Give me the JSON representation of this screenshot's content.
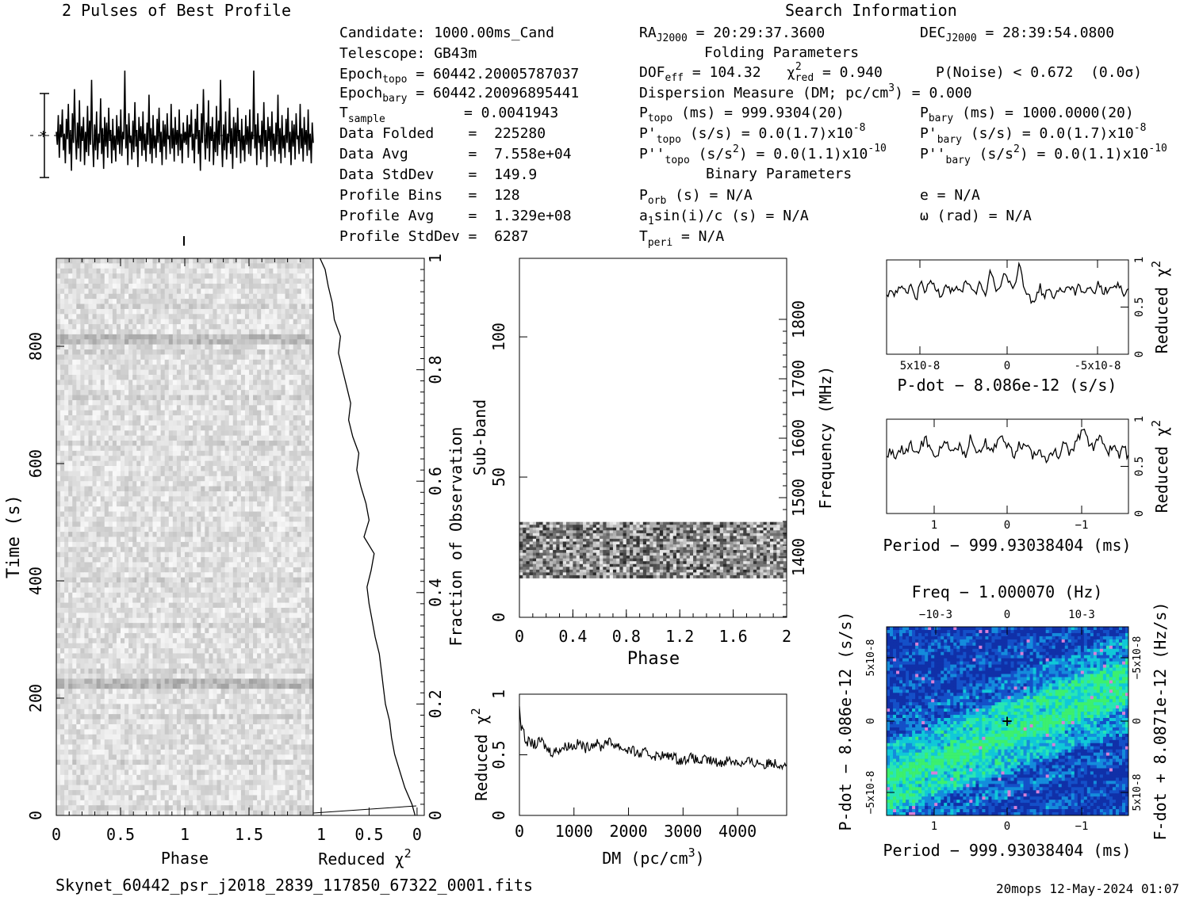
{
  "header": {
    "profile_title": "2 Pulses of Best Profile",
    "search_title": "Search Information",
    "folding_title": "Folding Parameters",
    "binary_title": "Binary Parameters",
    "footer_file": "Skynet_60442_psr_j2018_2839_117850_67322_0001.fits",
    "footer_stamp": "20mops 12-May-2024 01:07"
  },
  "info": {
    "candidate": "Candidate:  1000.00ms_Cand",
    "telescope": "Telescope:  GB43m",
    "epoch_topo_label": "Epoch",
    "epoch_topo_sub": "topo",
    "epoch_topo_val": " = 60442.20005787037",
    "epoch_bary_label": "Epoch",
    "epoch_bary_sub": "bary",
    "epoch_bary_val": " = 60442.20096895441",
    "tsample_label": "T",
    "tsample_sub": "sample",
    "tsample_val": "=  0.0041943",
    "data_folded": "Data Folded    =  225280",
    "data_avg": "Data Avg       =  7.558e+04",
    "data_stddev": "Data StdDev    =  149.9",
    "profile_bins": "Profile Bins   =  128",
    "profile_avg": "Profile Avg    =  1.329e+08",
    "profile_stddev": "Profile StdDev =  6287",
    "ra_label": "RA",
    "ra_sub": "J2000",
    "ra_val": " = 20:29:37.3600",
    "dec_label": "DEC",
    "dec_sub": "J2000",
    "dec_val": " = 28:39:54.0800",
    "dof_label": "DOF",
    "dof_sub": "eff",
    "dof_val": " = 104.32",
    "chi_label": "χ",
    "chi_sup": "2",
    "chi_sub": "red",
    "chi_val": " = 0.940",
    "pnoise": "P(Noise) < 0.672  (0.0σ)",
    "dispersion": "Dispersion Measure (DM; pc/cm",
    "dispersion_sup": "3",
    "dispersion_val": ") = 0.000",
    "ptopo_label": "P",
    "ptopo_sub": "topo",
    "ptopo_val": " (ms) =  999.9304(20)",
    "pbary_label": "P",
    "pbary_sub": "bary",
    "pbary_val": " (ms) =  1000.0000(20)",
    "pdtopo_label": "P'",
    "pdtopo_sub": "topo",
    "pdtopo_val": " (s/s) = 0.0(1.7)x10",
    "pdtopo_exp": "-8",
    "pdbary_label": "P'",
    "pdbary_sub": "bary",
    "pdbary_val": " (s/s) = 0.0(1.7)x10",
    "pdbary_exp": "-8",
    "pddtopo_label": "P''",
    "pddtopo_sub": "topo",
    "pddtopo_val": " (s/s",
    "pddtopo_sup": "2",
    "pddtopo_val2": ") = 0.0(1.1)x10",
    "pddtopo_exp": "-10",
    "pddbary_label": "P''",
    "pddbary_sub": "bary",
    "pddbary_val": " (s/s",
    "pddbary_sup": "2",
    "pddbary_val2": ") = 0.0(1.1)x10",
    "pddbary_exp": "-10",
    "porb_label": "P",
    "porb_sub": "orb",
    "porb_val": " (s) = N/A",
    "asini": "a",
    "asini_sub": "1",
    "asini_val": "sin(i)/c (s) = N/A",
    "tperi_label": "T",
    "tperi_sub": "peri",
    "tperi_val": " = N/A",
    "ecc": "e = N/A",
    "omega": "ω (rad) = N/A"
  },
  "axes": {
    "phase": "Phase",
    "time": "Time (s)",
    "redchi": "Reduced χ",
    "redchi_sup": "2",
    "fraction": "Fraction of Observation",
    "subband": "Sub-band",
    "frequency": "Frequency (MHz)",
    "dm": "DM (pc/cm",
    "dm_sup": "3",
    "dm_close": ")",
    "pdot_axis": "P-dot − 8.086e-12 (s/s)",
    "period_axis": "Period − 999.93038404 (ms)",
    "freq_axis": "Freq − 1.000070 (Hz)",
    "fdot_axis": "F-dot + 8.0871e-12 (Hz/s)"
  },
  "colors": {
    "ink": "#000000",
    "grid_dark": "#888888",
    "grid_light": "#f2f2f2",
    "map_low": "#1030a8",
    "map_mid": "#10c8d8",
    "map_high": "#30f070",
    "map_peak": "#d880d8"
  },
  "chart_data": [
    {
      "type": "line",
      "name": "pulse-profile",
      "title": "2 Pulses of Best Profile",
      "x_range": [
        0,
        2
      ],
      "bins": 128,
      "description_values": "noise-like profile, two repeated pulses",
      "values": [
        0.62,
        0.55,
        0.71,
        0.48,
        0.66,
        0.59,
        0.74,
        0.52,
        0.61,
        0.45,
        0.69,
        0.58,
        0.77,
        0.5,
        0.63,
        0.41,
        0.72,
        0.56,
        0.85,
        0.6,
        0.47,
        0.67,
        0.53,
        0.79,
        0.46,
        0.65,
        0.57,
        0.7,
        0.44,
        0.62,
        0.51,
        0.76,
        0.49,
        0.68,
        0.55,
        0.9,
        0.58,
        0.43,
        0.66,
        0.52,
        0.73,
        0.47,
        0.61,
        0.56,
        0.8,
        0.5,
        0.64,
        0.42,
        0.7,
        0.54,
        0.67,
        0.48,
        0.75,
        0.57,
        0.63,
        0.45,
        0.69,
        0.52,
        0.6,
        0.46,
        0.71,
        0.55,
        0.65,
        0.5,
        0.74,
        0.49,
        0.62,
        0.58,
        0.95,
        0.53,
        0.66,
        0.44,
        0.72,
        0.56,
        0.6,
        0.47,
        0.68,
        0.51,
        0.78,
        0.54,
        0.63,
        0.43,
        0.7,
        0.57,
        0.65,
        0.49,
        0.73,
        0.52,
        0.61,
        0.46,
        0.67,
        0.55,
        0.82,
        0.5,
        0.64,
        0.45,
        0.71,
        0.53,
        0.6,
        0.48,
        0.69,
        0.56,
        0.75,
        0.51,
        0.62,
        0.44,
        0.68,
        0.54,
        0.66,
        0.47,
        0.72,
        0.58,
        0.6,
        0.5,
        0.77,
        0.53,
        0.64,
        0.46,
        0.7,
        0.55,
        0.63,
        0.49,
        0.74,
        0.52,
        0.61,
        0.45,
        0.67,
        0.56
      ]
    },
    {
      "type": "heatmap",
      "name": "time-phase",
      "xlabel": "Phase",
      "ylabel": "Time (s)",
      "xlim": [
        0,
        2
      ],
      "ylim": [
        0,
        950
      ],
      "xticks": [
        "0",
        "0.5",
        "1",
        "1.5"
      ],
      "yticks": [
        "0",
        "200",
        "400",
        "600",
        "800"
      ]
    },
    {
      "type": "line",
      "name": "time-redchi",
      "xlabel": "Reduced χ2",
      "ylabel": "Fraction of Observation",
      "xticks": [
        "1",
        "0.5",
        "0"
      ],
      "yticks": [
        "0",
        "0.2",
        "0.4",
        "0.6",
        "0.8",
        "1"
      ],
      "x_range": [
        1,
        0
      ],
      "y": [
        0.0,
        0.02,
        0.05,
        0.08,
        0.11,
        0.14,
        0.17,
        0.2,
        0.23,
        0.26,
        0.29,
        0.32,
        0.35,
        0.38,
        0.41,
        0.44,
        0.47,
        0.5,
        0.53,
        0.56,
        0.59,
        0.62,
        0.65,
        0.68,
        0.71,
        0.74,
        0.77,
        0.8,
        0.83,
        0.86,
        0.89,
        0.92,
        0.95,
        0.98,
        1.0
      ],
      "x": [
        0.05,
        0.08,
        0.15,
        0.2,
        0.25,
        0.28,
        0.3,
        0.34,
        0.36,
        0.38,
        0.4,
        0.44,
        0.47,
        0.5,
        0.52,
        0.48,
        0.45,
        0.55,
        0.5,
        0.53,
        0.58,
        0.62,
        0.6,
        0.66,
        0.7,
        0.68,
        0.72,
        0.76,
        0.8,
        0.78,
        0.84,
        0.86,
        0.9,
        0.93,
        0.98
      ]
    },
    {
      "type": "heatmap",
      "name": "subband-phase",
      "xlabel": "Phase",
      "ylabel": "Sub-band",
      "y2label": "Frequency (MHz)",
      "xlim": [
        0,
        2
      ],
      "ylim": [
        0,
        128
      ],
      "band_range": [
        14,
        34
      ],
      "xticks": [
        "0",
        "0.4",
        "0.8",
        "1.2",
        "1.6",
        "2"
      ],
      "yticks": [
        "0",
        "50",
        "100"
      ],
      "y2ticks": [
        "1400",
        "1500",
        "1600",
        "1700",
        "1800"
      ]
    },
    {
      "type": "line",
      "name": "dm-redchi",
      "xlabel": "DM (pc/cm3)",
      "ylabel": "Reduced χ2",
      "xlim": [
        0,
        4900
      ],
      "ylim": [
        0,
        1
      ],
      "xticks": [
        "0",
        "1000",
        "2000",
        "3000",
        "4000"
      ],
      "yticks": [
        "0",
        "0.5",
        "1"
      ],
      "x": [
        0,
        100,
        200,
        300,
        400,
        500,
        600,
        700,
        800,
        900,
        1000,
        1100,
        1200,
        1300,
        1400,
        1500,
        1600,
        1700,
        1800,
        1900,
        2000,
        2100,
        2200,
        2300,
        2400,
        2500,
        2600,
        2700,
        2800,
        2900,
        3000,
        3100,
        3200,
        3300,
        3400,
        3500,
        3600,
        3700,
        3800,
        3900,
        4000,
        4100,
        4200,
        4300,
        4400,
        4500,
        4600,
        4700,
        4800,
        4900
      ],
      "y": [
        0.9,
        0.62,
        0.6,
        0.58,
        0.62,
        0.55,
        0.52,
        0.54,
        0.56,
        0.58,
        0.57,
        0.6,
        0.55,
        0.58,
        0.6,
        0.56,
        0.62,
        0.59,
        0.58,
        0.55,
        0.54,
        0.53,
        0.5,
        0.52,
        0.5,
        0.49,
        0.5,
        0.48,
        0.5,
        0.46,
        0.45,
        0.48,
        0.47,
        0.44,
        0.46,
        0.45,
        0.44,
        0.43,
        0.46,
        0.45,
        0.44,
        0.42,
        0.45,
        0.43,
        0.44,
        0.41,
        0.44,
        0.43,
        0.42,
        0.44
      ]
    },
    {
      "type": "line",
      "name": "pdot-redchi",
      "xlabel": "P-dot − 8.086e-12 (s/s)",
      "ylabel": "Reduced χ2",
      "xticks": [
        "5x10-8",
        "0",
        "-5x10-8"
      ],
      "yticks": [
        "0",
        "0.5",
        "1"
      ],
      "ylim": [
        0,
        1
      ],
      "values": [
        0.6,
        0.68,
        0.62,
        0.72,
        0.65,
        0.7,
        0.6,
        0.74,
        0.66,
        0.78,
        0.7,
        0.64,
        0.76,
        0.68,
        0.72,
        0.63,
        0.8,
        0.7,
        0.66,
        0.74,
        0.62,
        0.86,
        0.72,
        0.68,
        0.9,
        0.76,
        0.7,
        0.98,
        0.64,
        0.6,
        0.56,
        0.72,
        0.62,
        0.68,
        0.58,
        0.7,
        0.64,
        0.74,
        0.66,
        0.72,
        0.62,
        0.7,
        0.66,
        0.76,
        0.64,
        0.72,
        0.68,
        0.74,
        0.62,
        0.7
      ]
    },
    {
      "type": "line",
      "name": "period-redchi",
      "xlabel": "Period − 999.93038404 (ms)",
      "ylabel": "Reduced χ2",
      "xticks": [
        "1",
        "0",
        "−1"
      ],
      "yticks": [
        "0",
        "0.5",
        "1"
      ],
      "ylim": [
        0,
        1
      ],
      "values": [
        0.62,
        0.66,
        0.58,
        0.7,
        0.64,
        0.74,
        0.6,
        0.72,
        0.8,
        0.66,
        0.62,
        0.7,
        0.76,
        0.64,
        0.68,
        0.72,
        0.62,
        0.8,
        0.7,
        0.66,
        0.78,
        0.64,
        0.72,
        0.86,
        0.74,
        0.68,
        0.62,
        0.74,
        0.7,
        0.66,
        0.6,
        0.7,
        0.56,
        0.64,
        0.68,
        0.62,
        0.74,
        0.66,
        0.72,
        0.8,
        0.94,
        0.76,
        0.68,
        0.82,
        0.72,
        0.66,
        0.74,
        0.62,
        0.7,
        0.6
      ]
    },
    {
      "type": "heatmap",
      "name": "period-pdot",
      "xlabel": "Period − 999.93038404 (ms)",
      "ylabel": "P-dot − 8.086e-12 (s/s)",
      "x2label": "Freq − 1.000070 (Hz)",
      "y2label": "F-dot + 8.0871e-12 (Hz/s)",
      "xticks": [
        "1",
        "0",
        "−1"
      ],
      "x2ticks": [
        "−10-3",
        "0",
        "10-3"
      ],
      "yticks": [
        "5x10-8",
        "0",
        "−5x10-8"
      ],
      "y2ticks": [
        "−5x10-8",
        "0",
        "5x10-8"
      ]
    }
  ]
}
